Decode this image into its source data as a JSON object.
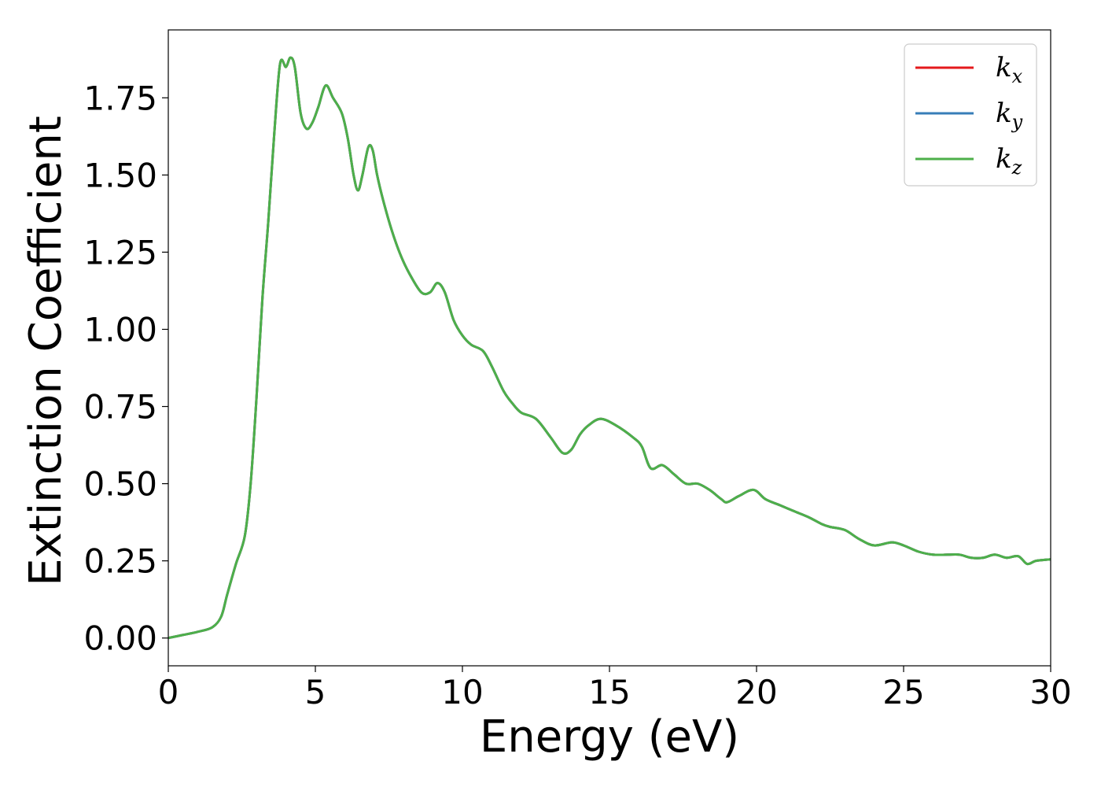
{
  "chart_data": {
    "type": "line",
    "title": "",
    "xlabel": "Energy (eV)",
    "ylabel": "Extinction Coefficient",
    "xlim": [
      0,
      30
    ],
    "ylim": [
      -0.09,
      1.97
    ],
    "xticks": [
      0,
      5,
      10,
      15,
      20,
      25,
      30
    ],
    "xtick_labels": [
      "0",
      "5",
      "10",
      "15",
      "20",
      "25",
      "30"
    ],
    "yticks": [
      0.0,
      0.25,
      0.5,
      0.75,
      1.0,
      1.25,
      1.5,
      1.75
    ],
    "ytick_labels": [
      "0.00",
      "0.25",
      "0.50",
      "0.75",
      "1.00",
      "1.25",
      "1.50",
      "1.75"
    ],
    "grid": false,
    "legend_position": "top-right",
    "series": [
      {
        "name": "k_x",
        "label_base": "k",
        "label_sub": "x",
        "color": "#e41a1c",
        "x": [
          0,
          0.5,
          1.0,
          1.5,
          1.8,
          2.0,
          2.3,
          2.6,
          2.8,
          3.0,
          3.2,
          3.4,
          3.6,
          3.8,
          4.0,
          4.15,
          4.3,
          4.5,
          4.7,
          4.9,
          5.1,
          5.35,
          5.6,
          5.9,
          6.1,
          6.3,
          6.45,
          6.6,
          6.8,
          6.95,
          7.1,
          7.3,
          7.6,
          7.9,
          8.2,
          8.6,
          8.9,
          9.15,
          9.4,
          9.7,
          10.0,
          10.3,
          10.7,
          11.0,
          11.4,
          11.7,
          12.0,
          12.5,
          13.0,
          13.4,
          13.7,
          14.0,
          14.3,
          14.7,
          15.2,
          15.8,
          16.1,
          16.4,
          16.8,
          17.2,
          17.6,
          18.0,
          18.4,
          18.8,
          19.0,
          19.4,
          19.9,
          20.3,
          20.8,
          21.3,
          21.8,
          22.2,
          22.5,
          23.0,
          23.5,
          24.0,
          24.6,
          25.0,
          25.5,
          26.0,
          26.5,
          26.9,
          27.3,
          27.7,
          28.1,
          28.5,
          28.9,
          29.2,
          29.5,
          30.0
        ],
        "values": [
          0.0,
          0.01,
          0.02,
          0.035,
          0.07,
          0.14,
          0.24,
          0.33,
          0.5,
          0.78,
          1.1,
          1.35,
          1.63,
          1.86,
          1.85,
          1.88,
          1.85,
          1.7,
          1.65,
          1.67,
          1.72,
          1.79,
          1.75,
          1.7,
          1.62,
          1.5,
          1.45,
          1.5,
          1.59,
          1.58,
          1.5,
          1.42,
          1.32,
          1.24,
          1.18,
          1.12,
          1.12,
          1.15,
          1.12,
          1.03,
          0.98,
          0.95,
          0.93,
          0.88,
          0.8,
          0.76,
          0.73,
          0.71,
          0.65,
          0.6,
          0.61,
          0.66,
          0.69,
          0.71,
          0.69,
          0.65,
          0.62,
          0.55,
          0.56,
          0.53,
          0.5,
          0.5,
          0.48,
          0.45,
          0.44,
          0.46,
          0.48,
          0.45,
          0.43,
          0.41,
          0.39,
          0.37,
          0.36,
          0.35,
          0.32,
          0.3,
          0.31,
          0.3,
          0.28,
          0.27,
          0.27,
          0.27,
          0.26,
          0.26,
          0.27,
          0.26,
          0.265,
          0.24,
          0.25,
          0.255
        ]
      },
      {
        "name": "k_y",
        "label_base": "k",
        "label_sub": "y",
        "color": "#377eb8",
        "x": [
          0,
          0.5,
          1.0,
          1.5,
          1.8,
          2.0,
          2.3,
          2.6,
          2.8,
          3.0,
          3.2,
          3.4,
          3.6,
          3.8,
          4.0,
          4.15,
          4.3,
          4.5,
          4.7,
          4.9,
          5.1,
          5.35,
          5.6,
          5.9,
          6.1,
          6.3,
          6.45,
          6.6,
          6.8,
          6.95,
          7.1,
          7.3,
          7.6,
          7.9,
          8.2,
          8.6,
          8.9,
          9.15,
          9.4,
          9.7,
          10.0,
          10.3,
          10.7,
          11.0,
          11.4,
          11.7,
          12.0,
          12.5,
          13.0,
          13.4,
          13.7,
          14.0,
          14.3,
          14.7,
          15.2,
          15.8,
          16.1,
          16.4,
          16.8,
          17.2,
          17.6,
          18.0,
          18.4,
          18.8,
          19.0,
          19.4,
          19.9,
          20.3,
          20.8,
          21.3,
          21.8,
          22.2,
          22.5,
          23.0,
          23.5,
          24.0,
          24.6,
          25.0,
          25.5,
          26.0,
          26.5,
          26.9,
          27.3,
          27.7,
          28.1,
          28.5,
          28.9,
          29.2,
          29.5,
          30.0
        ],
        "values": [
          0.0,
          0.01,
          0.02,
          0.035,
          0.07,
          0.14,
          0.24,
          0.33,
          0.5,
          0.78,
          1.1,
          1.35,
          1.63,
          1.86,
          1.85,
          1.88,
          1.85,
          1.7,
          1.65,
          1.67,
          1.72,
          1.79,
          1.75,
          1.7,
          1.62,
          1.5,
          1.45,
          1.5,
          1.59,
          1.58,
          1.5,
          1.42,
          1.32,
          1.24,
          1.18,
          1.12,
          1.12,
          1.15,
          1.12,
          1.03,
          0.98,
          0.95,
          0.93,
          0.88,
          0.8,
          0.76,
          0.73,
          0.71,
          0.65,
          0.6,
          0.61,
          0.66,
          0.69,
          0.71,
          0.69,
          0.65,
          0.62,
          0.55,
          0.56,
          0.53,
          0.5,
          0.5,
          0.48,
          0.45,
          0.44,
          0.46,
          0.48,
          0.45,
          0.43,
          0.41,
          0.39,
          0.37,
          0.36,
          0.35,
          0.32,
          0.3,
          0.31,
          0.3,
          0.28,
          0.27,
          0.27,
          0.27,
          0.26,
          0.26,
          0.27,
          0.26,
          0.265,
          0.24,
          0.25,
          0.255
        ]
      },
      {
        "name": "k_z",
        "label_base": "k",
        "label_sub": "z",
        "color": "#4daf4a",
        "x": [
          0,
          0.5,
          1.0,
          1.5,
          1.8,
          2.0,
          2.3,
          2.6,
          2.8,
          3.0,
          3.2,
          3.4,
          3.6,
          3.8,
          4.0,
          4.15,
          4.3,
          4.5,
          4.7,
          4.9,
          5.1,
          5.35,
          5.6,
          5.9,
          6.1,
          6.3,
          6.45,
          6.6,
          6.8,
          6.95,
          7.1,
          7.3,
          7.6,
          7.9,
          8.2,
          8.6,
          8.9,
          9.15,
          9.4,
          9.7,
          10.0,
          10.3,
          10.7,
          11.0,
          11.4,
          11.7,
          12.0,
          12.5,
          13.0,
          13.4,
          13.7,
          14.0,
          14.3,
          14.7,
          15.2,
          15.8,
          16.1,
          16.4,
          16.8,
          17.2,
          17.6,
          18.0,
          18.4,
          18.8,
          19.0,
          19.4,
          19.9,
          20.3,
          20.8,
          21.3,
          21.8,
          22.2,
          22.5,
          23.0,
          23.5,
          24.0,
          24.6,
          25.0,
          25.5,
          26.0,
          26.5,
          26.9,
          27.3,
          27.7,
          28.1,
          28.5,
          28.9,
          29.2,
          29.5,
          30.0
        ],
        "values": [
          0.0,
          0.01,
          0.02,
          0.035,
          0.07,
          0.14,
          0.24,
          0.33,
          0.5,
          0.78,
          1.1,
          1.35,
          1.63,
          1.86,
          1.85,
          1.88,
          1.85,
          1.7,
          1.65,
          1.67,
          1.72,
          1.79,
          1.75,
          1.7,
          1.62,
          1.5,
          1.45,
          1.5,
          1.59,
          1.58,
          1.5,
          1.42,
          1.32,
          1.24,
          1.18,
          1.12,
          1.12,
          1.15,
          1.12,
          1.03,
          0.98,
          0.95,
          0.93,
          0.88,
          0.8,
          0.76,
          0.73,
          0.71,
          0.65,
          0.6,
          0.61,
          0.66,
          0.69,
          0.71,
          0.69,
          0.65,
          0.62,
          0.55,
          0.56,
          0.53,
          0.5,
          0.5,
          0.48,
          0.45,
          0.44,
          0.46,
          0.48,
          0.45,
          0.43,
          0.41,
          0.39,
          0.37,
          0.36,
          0.35,
          0.32,
          0.3,
          0.31,
          0.3,
          0.28,
          0.27,
          0.27,
          0.27,
          0.26,
          0.26,
          0.27,
          0.26,
          0.265,
          0.24,
          0.25,
          0.255
        ]
      }
    ]
  }
}
